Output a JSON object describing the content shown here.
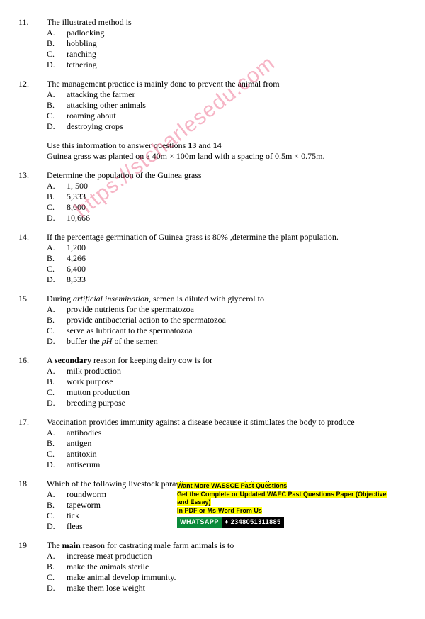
{
  "watermark": "https://stcharlesedu.com",
  "questions": [
    {
      "num": "11.",
      "text": "The illustrated method is",
      "options": [
        {
          "l": "A.",
          "t": "padlocking"
        },
        {
          "l": "B.",
          "t": "hobbling"
        },
        {
          "l": "C.",
          "t": "ranching"
        },
        {
          "l": "D.",
          "t": "tethering"
        }
      ]
    },
    {
      "num": "12.",
      "text": "The management practice is mainly done to prevent the animal from",
      "options": [
        {
          "l": "A.",
          "t": "attacking the farmer"
        },
        {
          "l": "B.",
          "t": "attacking other animals"
        },
        {
          "l": "C.",
          "t": "roaming about"
        },
        {
          "l": "D.",
          "t": "destroying crops"
        }
      ]
    }
  ],
  "context": {
    "line1a": "Use this information to answer questions ",
    "line1b": "13",
    "line1c": " and ",
    "line1d": "14",
    "line2": "Guinea grass was planted on a 40m × 100m land with a spacing of 0.5m × 0.75m."
  },
  "questions2": [
    {
      "num": "13.",
      "text": "Determine the population of the Guinea grass",
      "options": [
        {
          "l": "A.",
          "t": "1, 500"
        },
        {
          "l": "B.",
          "t": "5,333"
        },
        {
          "l": "C.",
          "t": "8,000"
        },
        {
          "l": "D.",
          "t": "10,666"
        }
      ]
    },
    {
      "num": "14.",
      "text": "If the percentage germination of Guinea grass is 80% ,determine the plant population.",
      "options": [
        {
          "l": "A.",
          "t": "1,200"
        },
        {
          "l": "B.",
          "t": "4,266"
        },
        {
          "l": "C.",
          "t": "6,400"
        },
        {
          "l": "D.",
          "t": "8,533"
        }
      ]
    },
    {
      "num": "15.",
      "pre": "During ",
      "italic": "artificial insemination,",
      "post": " semen is diluted with glycerol to",
      "options": [
        {
          "l": "A.",
          "t": "provide nutrients for the spermatozoa"
        },
        {
          "l": "B.",
          "t": "provide antibacterial action to the spermatozoa"
        },
        {
          "l": "C.",
          "t": "serve as lubricant to the spermatozoa"
        },
        {
          "l": "D.",
          "pre": "buffer the ",
          "italic": "pH",
          "post": " of the semen"
        }
      ]
    },
    {
      "num": "16.",
      "pre": "A ",
      "bolded": "secondary",
      "post": " reason for keeping dairy cow is for",
      "options": [
        {
          "l": "A.",
          "t": "milk production"
        },
        {
          "l": "B.",
          "t": "work purpose"
        },
        {
          "l": "C.",
          "t": "mutton production"
        },
        {
          "l": "D.",
          "t": "breeding purpose"
        }
      ]
    },
    {
      "num": "17.",
      "text": "Vaccination provides immunity against a disease because it stimulates the body to produce",
      "options": [
        {
          "l": "A.",
          "t": "antibodies"
        },
        {
          "l": "B.",
          "t": "antigen"
        },
        {
          "l": "C.",
          "t": "antitoxin"
        },
        {
          "l": "D.",
          "t": "antiserum"
        }
      ]
    },
    {
      "num": "18.",
      "text": "Which of the following livestock parasites possesses a rostellum?",
      "options": [
        {
          "l": "A.",
          "t": "roundworm"
        },
        {
          "l": "B.",
          "t": "tapeworm"
        },
        {
          "l": "C.",
          "t": "tick"
        },
        {
          "l": "D.",
          "t": "fleas"
        }
      ]
    },
    {
      "num": "19",
      "pre": "The ",
      "bolded": "main",
      "post": " reason for castrating male farm animals is to",
      "options": [
        {
          "l": "A.",
          "t": "increase meat production"
        },
        {
          "l": "B.",
          "t": "make the animals sterile"
        },
        {
          "l": "C.",
          "t": "make animal develop immunity."
        },
        {
          "l": "D.",
          "t": "make them lose weight"
        }
      ]
    }
  ],
  "promo": {
    "l1": "Want More WASSCE Past Questions",
    "l2": "Get the Complete or Updated WAEC Past Questions Paper (Objective and Essay)",
    "l3": "In PDF or Ms-Word From Us",
    "wa_label": "WHATSAPP",
    "wa_num": "+ 2348051311885"
  }
}
